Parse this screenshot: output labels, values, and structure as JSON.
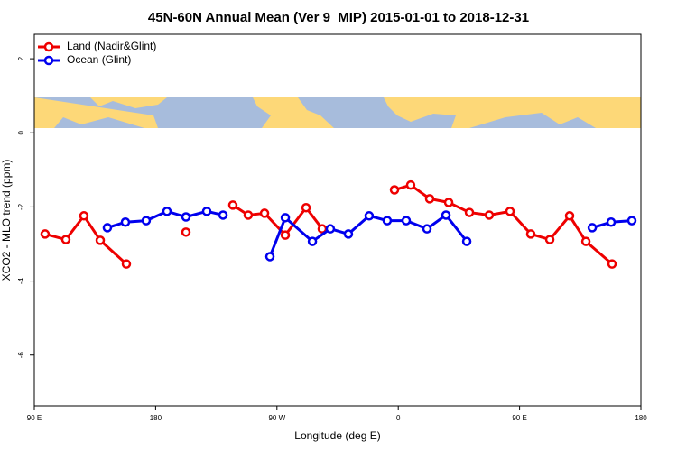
{
  "chart_data": {
    "type": "line",
    "title": "45N-60N Annual Mean (Ver 9_MIP)   2015-01-01 to 2018-12-31",
    "x_label": "Longitude (deg E)",
    "y_label": "XCO2 - MLO trend (ppm)",
    "xlim": [
      90,
      540
    ],
    "xticks": [
      {
        "value": 90,
        "label": "90 E"
      },
      {
        "value": 180,
        "label": "180"
      },
      {
        "value": 270,
        "label": "90 W"
      },
      {
        "value": 360,
        "label": "0"
      },
      {
        "value": 450,
        "label": "90 E"
      },
      {
        "value": 540,
        "label": "180"
      }
    ],
    "ylim": [
      -7.37,
      2.66
    ],
    "yticks": [
      2,
      0,
      -2,
      -4,
      -6
    ],
    "legend": "top-left",
    "series": [
      {
        "name": "Land (Nadir&Glint)",
        "color": "#ee0000",
        "x": [
          98,
          113.4,
          126.8,
          138.9,
          158.3,
          null,
          202.5,
          null,
          237.3,
          248.7,
          260.8,
          276.2,
          291.6,
          303.6,
          null,
          357.2,
          369.2,
          383.3,
          397.4,
          412.8,
          427.5,
          442.9,
          458.3,
          472.4,
          487.1,
          499.2,
          518.6
        ],
        "values": [
          -2.73,
          -2.88,
          -2.24,
          -2.9,
          -3.54,
          null,
          -2.68,
          null,
          -1.95,
          -2.22,
          -2.17,
          -2.76,
          -2.02,
          -2.59,
          null,
          -1.54,
          -1.41,
          -1.78,
          -1.88,
          -2.15,
          -2.22,
          -2.12,
          -2.73,
          -2.88,
          -2.24,
          -2.93,
          -3.54
        ]
      },
      {
        "name": "Ocean (Glint)",
        "color": "#0000ee",
        "x": [
          144.2,
          157.6,
          173,
          188.4,
          202.5,
          217.9,
          230,
          null,
          264.8,
          276.2,
          296.3,
          309.6,
          323,
          338.4,
          351.8,
          365.9,
          381.3,
          395.4,
          410.8,
          null,
          503.9,
          517.9,
          533.3
        ],
        "values": [
          -2.56,
          -2.41,
          -2.37,
          -2.12,
          -2.27,
          -2.12,
          -2.22,
          null,
          -3.34,
          -2.29,
          -2.93,
          -2.59,
          -2.73,
          -2.24,
          -2.37,
          -2.37,
          -2.59,
          -2.22,
          -2.93,
          null,
          -2.56,
          -2.41,
          -2.37
        ]
      }
    ]
  }
}
